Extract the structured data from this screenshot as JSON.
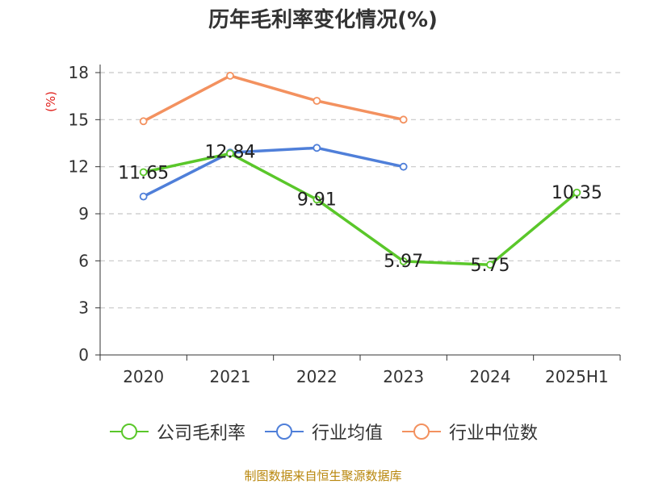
{
  "title": "历年毛利率变化情况(%)",
  "source": "制图数据来自恒生聚源数据库",
  "chart_data": {
    "type": "line",
    "title": "历年毛利率变化情况(%)",
    "ylabel": "(%)",
    "xlabel": "",
    "categories": [
      "2020",
      "2021",
      "2022",
      "2023",
      "2024",
      "2025H1"
    ],
    "ylim": [
      0,
      18
    ],
    "yticks": [
      0,
      3,
      6,
      9,
      12,
      15,
      18
    ],
    "grid": true,
    "legend_position": "bottom",
    "series": [
      {
        "name": "公司毛利率",
        "color": "#5ac72a",
        "values": [
          11.65,
          12.84,
          9.91,
          5.97,
          5.75,
          10.35
        ],
        "show_labels": true
      },
      {
        "name": "行业均值",
        "color": "#4f7fd9",
        "values": [
          10.1,
          12.9,
          13.2,
          12.0,
          null,
          null
        ],
        "show_labels": false
      },
      {
        "name": "行业中位数",
        "color": "#f3915f",
        "values": [
          14.9,
          17.8,
          16.2,
          15.0,
          null,
          null
        ],
        "show_labels": false
      }
    ],
    "data_labels": [
      "11.65",
      "12.84",
      "9.91",
      "5.97",
      "5.75",
      "10.35"
    ]
  }
}
